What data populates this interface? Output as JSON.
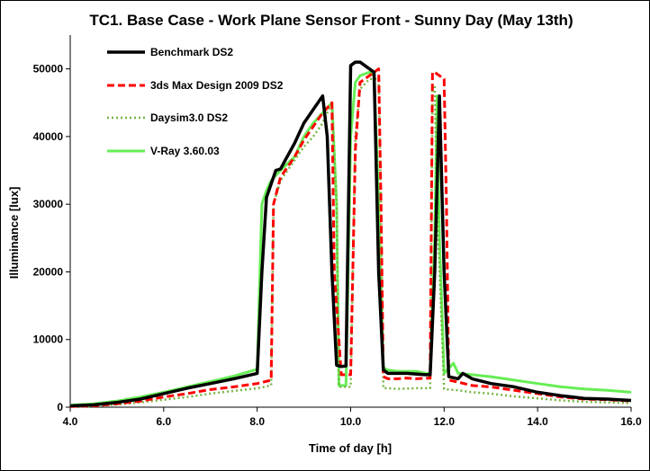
{
  "chart_data": {
    "type": "line",
    "title": "TC1. Base Case - Work Plane Sensor Front - Sunny Day (May 13th)",
    "xlabel": "Time of day [h]",
    "ylabel": "Illuminance [lux]",
    "xlim": [
      4.0,
      16.0
    ],
    "ylim": [
      0,
      55000
    ],
    "xticks": [
      4.0,
      6.0,
      8.0,
      10.0,
      12.0,
      14.0,
      16.0
    ],
    "xtick_labels": [
      "4.0",
      "6.0",
      "8.0",
      "10.0",
      "12.0",
      "14.0",
      "16.0"
    ],
    "yticks": [
      0,
      10000,
      20000,
      30000,
      40000,
      50000
    ],
    "ytick_labels": [
      "0",
      "10000",
      "20000",
      "30000",
      "40000",
      "50000"
    ],
    "grid": false,
    "legend_position": "top-left",
    "series": [
      {
        "name": "Benchmark DS2",
        "color": "#000000",
        "style": "solid",
        "x": [
          4.0,
          4.5,
          5.0,
          5.5,
          6.0,
          6.5,
          7.0,
          7.5,
          8.0,
          8.1,
          8.2,
          8.3,
          8.4,
          8.5,
          8.6,
          8.8,
          9.0,
          9.2,
          9.4,
          9.5,
          9.6,
          9.7,
          9.8,
          9.9,
          10.0,
          10.1,
          10.2,
          10.4,
          10.5,
          10.6,
          10.7,
          10.8,
          11.0,
          11.2,
          11.4,
          11.6,
          11.7,
          11.8,
          11.9,
          12.0,
          12.1,
          12.3,
          12.4,
          12.6,
          13.0,
          13.5,
          14.0,
          14.5,
          15.0,
          15.5,
          16.0
        ],
        "y": [
          200,
          350,
          700,
          1200,
          2000,
          2800,
          3500,
          4200,
          5000,
          20000,
          31000,
          33000,
          35000,
          35200,
          36500,
          39000,
          42000,
          44000,
          46000,
          40000,
          20000,
          6200,
          6000,
          6100,
          50500,
          51000,
          51000,
          50000,
          49500,
          20000,
          5500,
          5000,
          5000,
          5000,
          4900,
          4800,
          4800,
          20000,
          46000,
          20000,
          4500,
          4200,
          5000,
          4200,
          3500,
          3000,
          2200,
          1700,
          1300,
          1200,
          1000
        ]
      },
      {
        "name": "3ds Max Design 2009 DS2",
        "color": "#ff0000",
        "style": "dashed",
        "x": [
          4.0,
          4.5,
          5.0,
          5.5,
          6.0,
          6.5,
          7.0,
          7.5,
          8.0,
          8.3,
          8.35,
          8.5,
          8.8,
          9.0,
          9.2,
          9.4,
          9.6,
          9.65,
          9.8,
          9.9,
          10.0,
          10.1,
          10.2,
          10.4,
          10.6,
          10.65,
          10.7,
          10.8,
          11.0,
          11.2,
          11.4,
          11.7,
          11.75,
          11.8,
          12.0,
          12.05,
          12.1,
          12.3,
          12.6,
          13.0,
          13.5,
          14.0,
          14.5,
          15.0,
          15.5,
          16.0
        ],
        "y": [
          100,
          200,
          500,
          900,
          1500,
          2000,
          2600,
          3000,
          3500,
          4000,
          30000,
          34000,
          37000,
          39500,
          41500,
          43500,
          45000,
          20000,
          4800,
          4800,
          4800,
          38000,
          48000,
          49000,
          50000,
          30000,
          4500,
          4200,
          4200,
          4300,
          4200,
          4300,
          49500,
          49500,
          48500,
          30000,
          4000,
          3700,
          3200,
          3000,
          2500,
          2000,
          1500,
          1200,
          1100,
          900
        ]
      },
      {
        "name": "Daysim3.0 DS2",
        "color": "#77b543",
        "style": "dotted",
        "x": [
          4.0,
          4.5,
          5.0,
          5.5,
          6.0,
          6.5,
          7.0,
          7.5,
          8.0,
          8.3,
          8.35,
          8.5,
          8.8,
          9.0,
          9.2,
          9.4,
          9.6,
          9.7,
          9.75,
          9.8,
          10.0,
          10.1,
          10.2,
          10.4,
          10.6,
          10.65,
          10.7,
          10.8,
          11.0,
          11.4,
          11.7,
          11.75,
          11.8,
          11.85,
          12.0,
          12.1,
          12.3,
          12.6,
          13.0,
          13.5,
          14.0,
          14.5,
          15.0,
          15.5,
          16.0
        ],
        "y": [
          100,
          150,
          400,
          700,
          1100,
          1500,
          2000,
          2400,
          2800,
          3200,
          30000,
          33500,
          36500,
          38500,
          40000,
          42000,
          45000,
          30000,
          3000,
          3000,
          3000,
          40000,
          47000,
          48500,
          48500,
          30000,
          2800,
          2800,
          2700,
          2800,
          2800,
          47500,
          47500,
          30000,
          2700,
          2600,
          2500,
          2200,
          2000,
          1600,
          1300,
          1000,
          800,
          700,
          600
        ]
      },
      {
        "name": "V-Ray 3.60.03",
        "color": "#66ee55",
        "style": "solid",
        "x": [
          4.0,
          4.5,
          5.0,
          5.5,
          6.0,
          6.5,
          7.0,
          7.5,
          8.0,
          8.1,
          8.2,
          8.3,
          8.5,
          8.8,
          9.0,
          9.2,
          9.4,
          9.6,
          9.7,
          9.75,
          9.8,
          9.9,
          10.0,
          10.1,
          10.2,
          10.4,
          10.5,
          10.6,
          10.7,
          10.8,
          11.0,
          11.4,
          11.6,
          11.7,
          11.8,
          11.85,
          11.9,
          12.0,
          12.2,
          12.3,
          12.6,
          13.0,
          13.5,
          14.0,
          14.5,
          15.0,
          15.5,
          16.0
        ],
        "y": [
          300,
          500,
          900,
          1500,
          2200,
          3000,
          3800,
          4600,
          5600,
          30000,
          32000,
          33500,
          35000,
          37000,
          40000,
          42000,
          43500,
          45000,
          30000,
          3200,
          3200,
          3200,
          40000,
          48000,
          49000,
          49500,
          49000,
          30000,
          5800,
          5500,
          5300,
          5300,
          5000,
          5000,
          25000,
          46000,
          25000,
          5000,
          6500,
          5000,
          4800,
          4500,
          4000,
          3500,
          3000,
          2700,
          2500,
          2200
        ]
      }
    ]
  }
}
